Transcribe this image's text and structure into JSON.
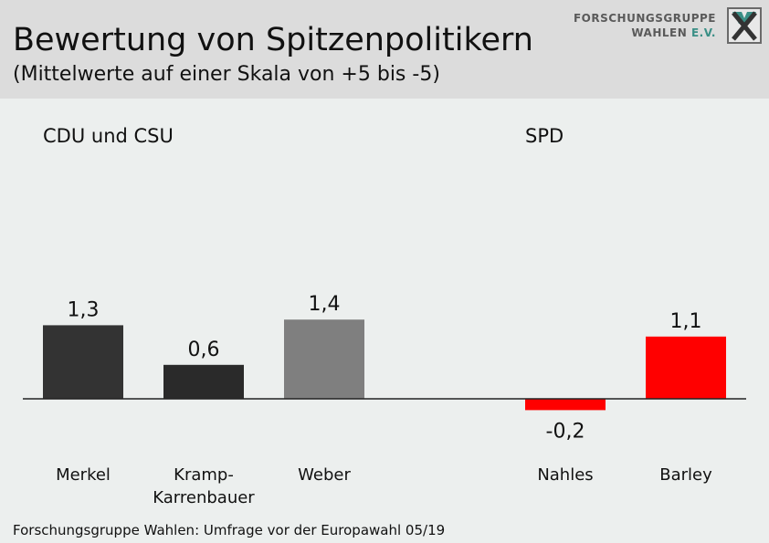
{
  "header": {
    "title": "Bewertung von Spitzenpolitikern",
    "subtitle": "(Mittelwerte auf einer Skala von +5 bis -5)",
    "logo_line1": "FORSCHUNGSGRUPPE",
    "logo_line2": "WAHLEN",
    "logo_line3": "E.V."
  },
  "groups": {
    "cdu_csu": "CDU und CSU",
    "spd": "SPD"
  },
  "footer": {
    "source": "Forschungsgruppe Wahlen: Umfrage vor der Europawahl 05/19"
  },
  "chart_data": {
    "type": "bar",
    "title": "Bewertung von Spitzenpolitikern",
    "subtitle": "(Mittelwerte auf einer Skala von +5 bis -5)",
    "categories": [
      "Merkel",
      "Kramp-Karrenbauer",
      "Weber",
      "Nahles",
      "Barley"
    ],
    "category_lines": [
      [
        "Merkel"
      ],
      [
        "Kramp-",
        "Karrenbauer"
      ],
      [
        "Weber"
      ],
      [
        "Nahles"
      ],
      [
        "Barley"
      ]
    ],
    "values": [
      1.3,
      0.6,
      1.4,
      -0.2,
      1.1
    ],
    "value_labels": [
      "1,3",
      "0,6",
      "1,4",
      "-0,2",
      "1,1"
    ],
    "groups": [
      "CDU und CSU",
      "CDU und CSU",
      "CDU und CSU",
      "SPD",
      "SPD"
    ],
    "colors": [
      "#333333",
      "#2a2a2a",
      "#7f7f7f",
      "#ff0000",
      "#ff0000"
    ],
    "ylim": [
      -5,
      5
    ],
    "grid": false,
    "legend": "none"
  }
}
